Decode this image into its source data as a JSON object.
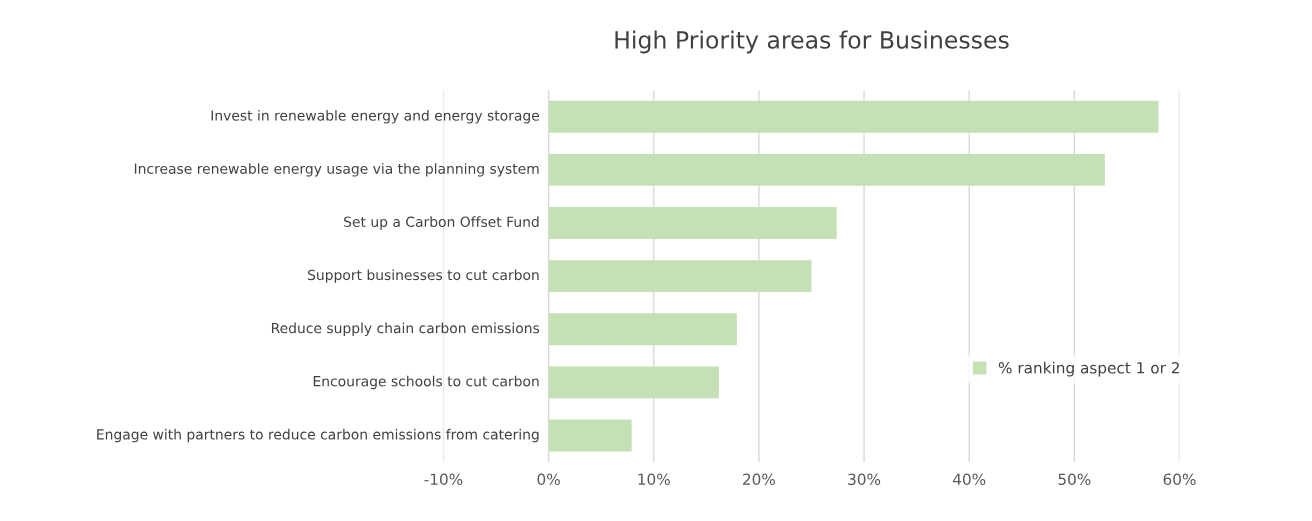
{
  "chart_data": {
    "type": "bar",
    "orientation": "horizontal",
    "title": "High Priority areas for Businesses",
    "categories": [
      "Invest in renewable energy and energy storage",
      "Increase renewable energy usage via the planning system",
      "Set up a Carbon Offset Fund",
      "Support businesses to cut carbon",
      "Reduce supply chain carbon emissions",
      "Encourage schools to cut carbon",
      "Engage with partners to reduce carbon emissions from catering"
    ],
    "series": [
      {
        "name": "% ranking aspect 1 or 2",
        "color": "#c5e0b4",
        "values": [
          58.0,
          52.9,
          27.4,
          25.0,
          17.9,
          16.2,
          7.9
        ]
      }
    ],
    "xlim": [
      -10,
      60
    ],
    "xticks": [
      {
        "value": -10,
        "label": "-10%"
      },
      {
        "value": 0,
        "label": "0%"
      },
      {
        "value": 10,
        "label": "10%"
      },
      {
        "value": 20,
        "label": "20%"
      },
      {
        "value": 30,
        "label": "30%"
      },
      {
        "value": 40,
        "label": "40%"
      },
      {
        "value": 50,
        "label": "50%"
      },
      {
        "value": 60,
        "label": "60%"
      }
    ],
    "grid": "x",
    "legend": "right"
  }
}
